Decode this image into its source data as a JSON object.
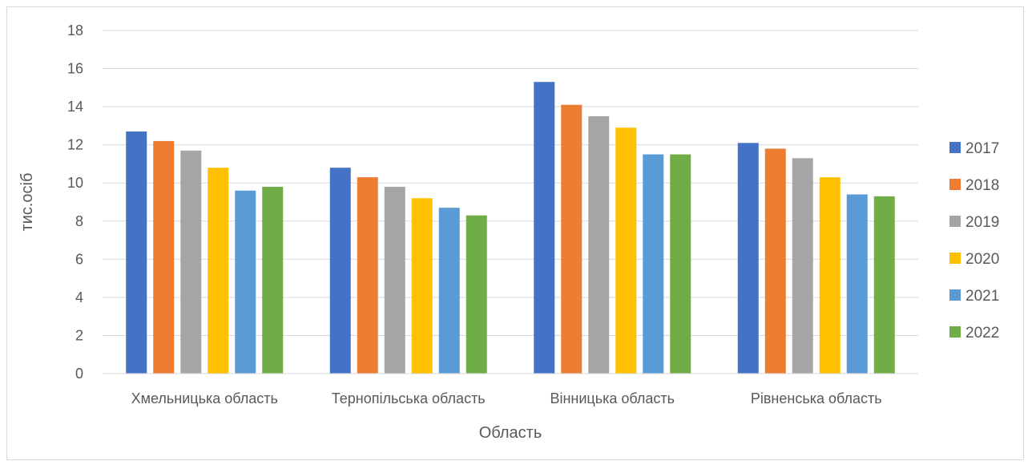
{
  "chart_data": {
    "type": "bar",
    "title": "",
    "xlabel": "Область",
    "ylabel": "тис.осіб",
    "ylim": [
      0,
      18
    ],
    "yticks": [
      0,
      2,
      4,
      6,
      8,
      10,
      12,
      14,
      16,
      18
    ],
    "grid": true,
    "legend_position": "right",
    "categories": [
      "Хмельницька область",
      "Тернопільська область",
      "Вінницька область",
      "Рівненська область"
    ],
    "series": [
      {
        "name": "2017",
        "color": "#4472c4",
        "values": [
          12.7,
          10.8,
          15.3,
          12.1
        ]
      },
      {
        "name": "2018",
        "color": "#ed7d31",
        "values": [
          12.2,
          10.3,
          14.1,
          11.8
        ]
      },
      {
        "name": "2019",
        "color": "#a5a5a5",
        "values": [
          11.7,
          9.8,
          13.5,
          11.3
        ]
      },
      {
        "name": "2020",
        "color": "#ffc000",
        "values": [
          10.8,
          9.2,
          12.9,
          10.3
        ]
      },
      {
        "name": "2021",
        "color": "#5b9bd5",
        "values": [
          9.6,
          8.7,
          11.5,
          9.4
        ]
      },
      {
        "name": "2022",
        "color": "#70ad47",
        "values": [
          9.8,
          8.3,
          11.5,
          9.3
        ]
      }
    ]
  }
}
